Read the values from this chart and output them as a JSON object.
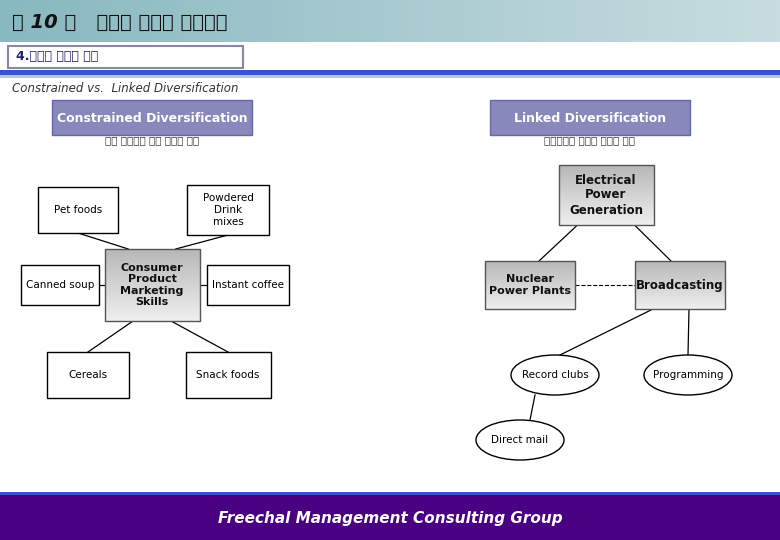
{
  "title": "제 10 장   다각화 기업의 전략경영",
  "subtitle": "4.다각화 전략의 유형",
  "section_title": "Constrained vs.  Linked Diversification",
  "left_box_title": "Constrained Diversification",
  "left_box_sub": "특정 핵심역량 중심 긴밀한 연결",
  "right_box_title": "Linked Diversification",
  "right_box_sub": "핵심역량의 사업간 국한된 공유",
  "footer": "Freechal Management Consulting Group",
  "header_bg": "#a8c8cc",
  "subtitle_border": "#8888aa",
  "blue_bar": "#4466cc",
  "footer_bg": "#4a0082",
  "left_hdr_bg": "#8888bb",
  "right_hdr_bg": "#8888bb",
  "gray_box_light": "#d0d0d0",
  "gray_box_dark": "#909090"
}
